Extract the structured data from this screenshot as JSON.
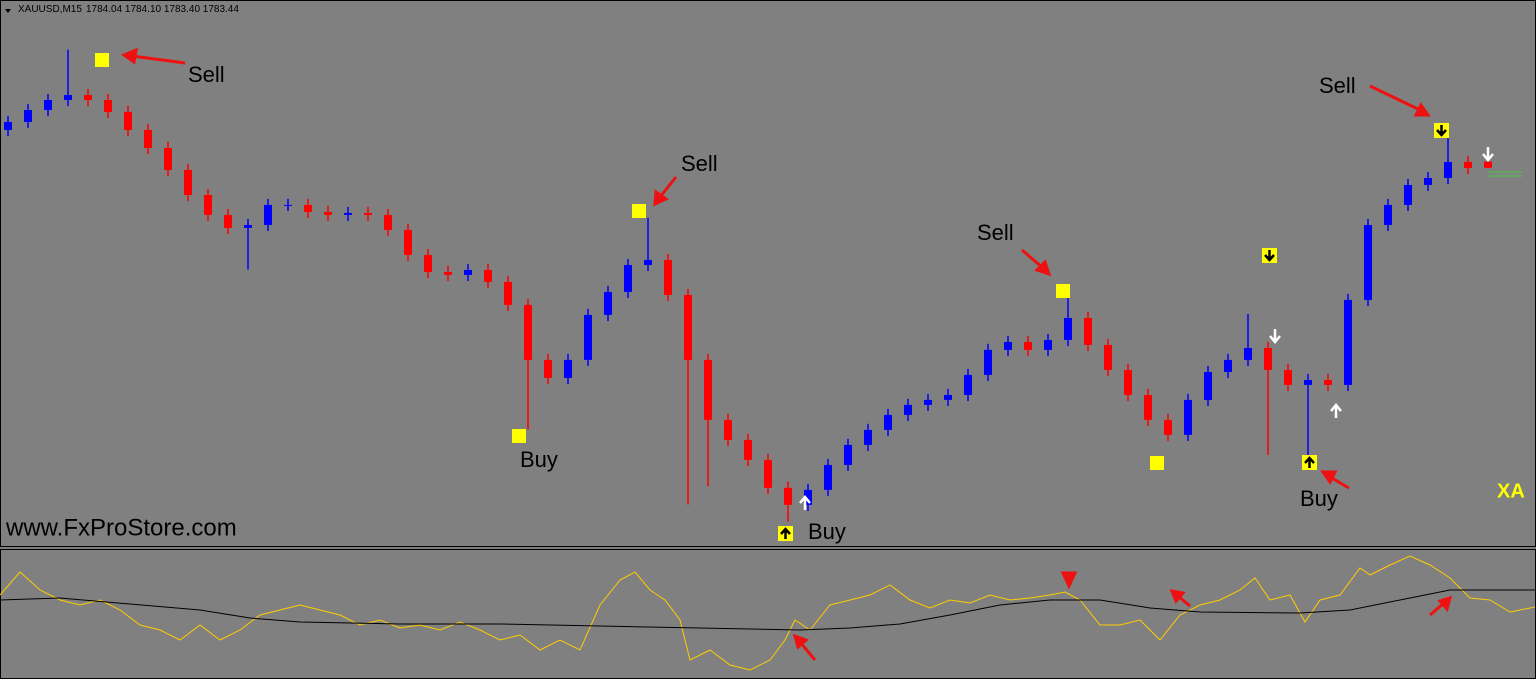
{
  "header": {
    "symbol": "XAUUSD,M15",
    "quote": "1784.04 1784.10 1783.40 1783.44"
  },
  "watermark": "www.FxProStore.com",
  "corner_label": "XA",
  "annotations": [
    "Sell",
    "Sell",
    "Buy",
    "Buy",
    "Sell",
    "Buy",
    "Sell"
  ],
  "chart_data": {
    "type": "candlestick",
    "ylim": [
      1746,
      1800
    ],
    "up_color": "#0000ff",
    "down_color": "#ff0000",
    "open": [
      1787.17,
      1787.96,
      1789.14,
      1790.13,
      1790.62,
      1790.13,
      1788.95,
      1787.17,
      1785.39,
      1783.22,
      1780.75,
      1778.78,
      1777.5,
      1777.79,
      1779.77,
      1779.77,
      1779.08,
      1778.78,
      1778.98,
      1778.78,
      1777.3,
      1774.83,
      1773.15,
      1772.86,
      1773.35,
      1772.17,
      1769.9,
      1764.47,
      1762.69,
      1764.47,
      1768.91,
      1771.18,
      1773.84,
      1774.34,
      1770.88,
      1764.47,
      1758.55,
      1756.57,
      1754.6,
      1751.84,
      1750.16,
      1751.64,
      1754.1,
      1756.08,
      1757.56,
      1759.04,
      1760.03,
      1760.52,
      1761.01,
      1762.99,
      1765.46,
      1766.24,
      1765.46,
      1766.44,
      1768.61,
      1765.95,
      1763.48,
      1761.01,
      1758.55,
      1757.07,
      1760.52,
      1763.28,
      1764.47,
      1765.65,
      1763.48,
      1762.0,
      1762.49,
      1762.0,
      1770.39,
      1777.79,
      1779.77,
      1781.74,
      1782.43,
      1784.01,
      1784.04
    ],
    "high": [
      1788.56,
      1789.74,
      1790.73,
      1795.1,
      1791.22,
      1790.73,
      1789.55,
      1787.77,
      1785.99,
      1783.82,
      1781.35,
      1779.38,
      1778.39,
      1780.37,
      1780.37,
      1780.37,
      1779.68,
      1779.58,
      1779.58,
      1779.38,
      1777.9,
      1775.43,
      1773.75,
      1773.95,
      1773.95,
      1772.77,
      1770.5,
      1765.07,
      1765.07,
      1769.51,
      1771.78,
      1774.44,
      1778.5,
      1774.94,
      1771.48,
      1765.07,
      1759.15,
      1757.17,
      1755.2,
      1752.44,
      1752.24,
      1754.7,
      1756.68,
      1758.16,
      1759.64,
      1760.63,
      1761.12,
      1761.61,
      1763.59,
      1766.06,
      1766.84,
      1766.84,
      1767.04,
      1771.5,
      1769.21,
      1766.55,
      1764.08,
      1761.61,
      1759.15,
      1761.12,
      1763.88,
      1765.07,
      1769.0,
      1766.25,
      1764.08,
      1763.09,
      1763.09,
      1770.99,
      1778.39,
      1780.37,
      1782.34,
      1783.03,
      1786.5,
      1784.61,
      1784.1
    ],
    "low": [
      1786.57,
      1787.36,
      1788.54,
      1789.53,
      1789.53,
      1788.35,
      1786.57,
      1784.79,
      1782.62,
      1780.15,
      1778.18,
      1776.9,
      1773.4,
      1777.19,
      1779.17,
      1778.48,
      1778.18,
      1778.18,
      1778.18,
      1776.7,
      1774.23,
      1772.55,
      1772.26,
      1772.26,
      1771.57,
      1769.3,
      1757.6,
      1762.09,
      1762.09,
      1763.87,
      1768.31,
      1770.58,
      1773.24,
      1770.28,
      1750.2,
      1752.0,
      1755.97,
      1754.0,
      1751.24,
      1748.5,
      1749.56,
      1751.04,
      1753.5,
      1755.48,
      1756.96,
      1758.44,
      1759.43,
      1759.92,
      1760.41,
      1762.39,
      1764.86,
      1764.86,
      1764.86,
      1765.84,
      1765.35,
      1762.88,
      1760.41,
      1757.95,
      1756.47,
      1756.47,
      1759.92,
      1762.68,
      1763.87,
      1755.1,
      1761.4,
      1754.9,
      1761.4,
      1761.4,
      1769.79,
      1777.19,
      1779.17,
      1781.14,
      1781.83,
      1782.82,
      1783.4
    ],
    "close": [
      1787.96,
      1789.14,
      1790.13,
      1790.62,
      1790.13,
      1788.95,
      1787.17,
      1785.39,
      1783.22,
      1780.75,
      1778.78,
      1777.5,
      1777.79,
      1779.77,
      1779.77,
      1779.08,
      1778.78,
      1778.98,
      1778.78,
      1777.3,
      1774.83,
      1773.15,
      1772.86,
      1773.35,
      1772.17,
      1769.9,
      1764.47,
      1762.69,
      1764.47,
      1768.91,
      1771.18,
      1773.84,
      1774.34,
      1770.88,
      1764.47,
      1758.55,
      1756.57,
      1754.6,
      1751.84,
      1750.16,
      1751.64,
      1754.1,
      1756.08,
      1757.56,
      1759.04,
      1760.03,
      1760.52,
      1761.01,
      1762.99,
      1765.46,
      1766.24,
      1765.46,
      1766.44,
      1768.61,
      1765.95,
      1763.48,
      1761.01,
      1758.55,
      1757.07,
      1760.52,
      1763.28,
      1764.47,
      1765.65,
      1763.48,
      1762.0,
      1762.49,
      1762.0,
      1770.39,
      1777.79,
      1779.77,
      1781.74,
      1782.43,
      1784.01,
      1783.42,
      1783.44
    ]
  }
}
